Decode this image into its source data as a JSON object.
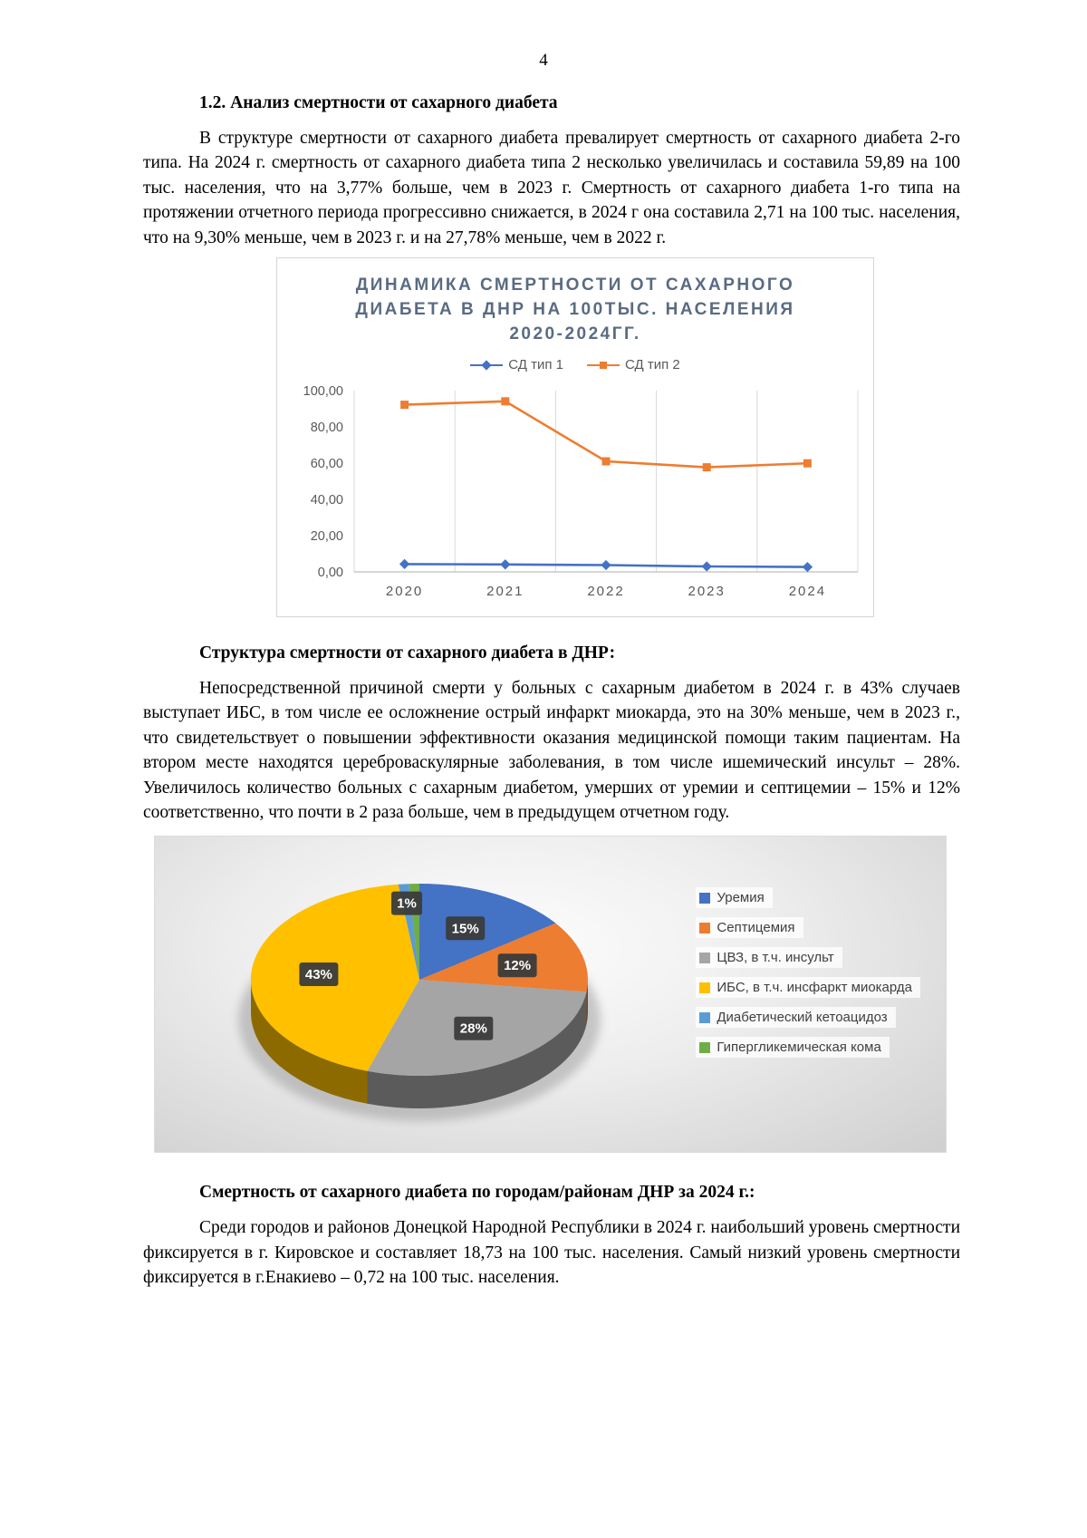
{
  "page": {
    "number": "4"
  },
  "section1": {
    "heading": "1.2. Анализ смертности от сахарного диабета",
    "paragraph": "В структуре смертности от сахарного диабета превалирует смертность от сахарного диабета 2-го типа. На 2024 г. смертность от сахарного диабета типа 2 несколько увеличилась и составила 59,89 на 100 тыс. населения, что на 3,77% больше, чем в 2023 г. Смертность от сахарного диабета 1-го типа на протяжении отчетного периода прогрессивно снижается, в 2024 г она составила 2,71 на 100 тыс. населения, что на 9,30% меньше, чем в 2023 г. и на 27,78% меньше, чем в 2022 г."
  },
  "section2": {
    "heading": "Структура смертности от сахарного диабета в ДНР:",
    "paragraph": "Непосредственной причиной смерти у больных с сахарным диабетом в 2024 г. в 43% случаев выступает ИБС, в том числе ее осложнение острый инфаркт миокарда, это на 30% меньше, чем в 2023 г., что свидетельствует о повышении эффективности оказания медицинской помощи таким пациентам. На втором месте находятся цереброваскулярные заболевания, в том числе ишемический инсульт – 28%. Увеличилось количество больных с сахарным диабетом, умерших от уремии и септицемии – 15% и 12% соответственно, что почти в 2 раза больше, чем в предыдущем отчетном году."
  },
  "section3": {
    "heading": "Смертность от сахарного диабета по городам/районам ДНР за 2024 г.:",
    "paragraph": "Среди городов и районов Донецкой Народной Республики в 2024 г. наибольший уровень смертности фиксируется в г. Кировское и составляет 18,73 на 100 тыс. населения. Самый низкий уровень смертности фиксируется в г.Енакиево – 0,72 на 100 тыс. населения."
  },
  "chart_data": [
    {
      "type": "line",
      "title": "ДИНАМИКА СМЕРТНОСТИ ОТ САХАРНОГО ДИАБЕТА В ДНР НА 100ТЫС. НАСЕЛЕНИЯ 2020-2024ГГ.",
      "title_lines": [
        "ДИНАМИКА СМЕРТНОСТИ ОТ САХАРНОГО",
        "ДИАБЕТА В ДНР НА 100ТЫС. НАСЕЛЕНИЯ",
        "2020-2024ГГ."
      ],
      "categories": [
        "2020",
        "2021",
        "2022",
        "2023",
        "2024"
      ],
      "series": [
        {
          "name": "СД тип 1",
          "color": "#4472C4",
          "marker": "diamond",
          "values": [
            4.3,
            4.1,
            3.75,
            2.99,
            2.71
          ]
        },
        {
          "name": "СД тип 2",
          "color": "#ED7D31",
          "marker": "square",
          "values": [
            92.2,
            94.1,
            61.0,
            57.71,
            59.89
          ]
        }
      ],
      "ylim": [
        0,
        100
      ],
      "yticks": [
        "100,00",
        "80,00",
        "60,00",
        "40,00",
        "20,00",
        "0,00"
      ],
      "grid": "vertical-category-lines",
      "legend_position": "top"
    },
    {
      "type": "pie",
      "style": "3d",
      "slices": [
        {
          "name": "Уремия",
          "value": 15,
          "color": "#4472C4",
          "label": "15%"
        },
        {
          "name": "Септицемия",
          "value": 12,
          "color": "#ED7D31",
          "label": "12%"
        },
        {
          "name": "ЦВЗ, в т.ч. инсульт",
          "value": 28,
          "color": "#A5A5A5",
          "label": "28%"
        },
        {
          "name": "ИБС, в т.ч. инсфаркт миокарда",
          "value": 43,
          "color": "#FFC000",
          "label": "43%"
        },
        {
          "name": "Диабетический кетоацидоз",
          "value": 1,
          "color": "#5B9BD5",
          "label": "1%"
        },
        {
          "name": "Гипергликемическая кома",
          "value": 1,
          "color": "#70AD47",
          "label": ""
        }
      ],
      "legend_position": "right"
    }
  ]
}
